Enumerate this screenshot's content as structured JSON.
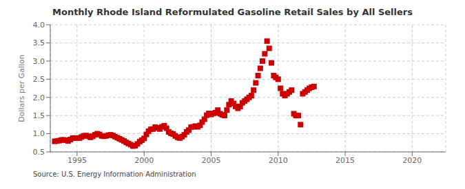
{
  "chart_data": {
    "type": "scatter",
    "title": "Monthly Rhode Island Reformulated Gasoline Retail Sales by All Sellers",
    "ylabel": "Dollars per Gallon",
    "annotation": "Source: U.S. Energy Information Administration",
    "xlim": [
      1993.0,
      2022.5
    ],
    "ylim": [
      0.5,
      4.0
    ],
    "xticks": [
      1995,
      2000,
      2005,
      2010,
      2015,
      2020
    ],
    "yticks": [
      0.5,
      {
        "value": 1.0,
        "label": "1.0"
      },
      1.5,
      {
        "value": 2.0,
        "label": "2.0"
      },
      2.5,
      {
        "value": 3.0,
        "label": "3.0"
      },
      3.5,
      {
        "value": 4.0,
        "label": "4.0"
      }
    ],
    "grid": true,
    "color": "#cc0000",
    "marker": "square",
    "x": [
      1993.33,
      1993.5,
      1993.67,
      1993.83,
      1994.0,
      1994.17,
      1994.33,
      1994.5,
      1994.67,
      1994.83,
      1995.0,
      1995.17,
      1995.33,
      1995.5,
      1995.67,
      1995.83,
      1996.0,
      1996.17,
      1996.33,
      1996.5,
      1996.67,
      1996.83,
      1997.0,
      1997.17,
      1997.33,
      1997.5,
      1997.67,
      1997.83,
      1998.0,
      1998.17,
      1998.33,
      1998.5,
      1998.67,
      1998.83,
      1999.0,
      1999.17,
      1999.33,
      1999.5,
      1999.67,
      1999.83,
      2000.0,
      2000.17,
      2000.33,
      2000.5,
      2000.67,
      2000.83,
      2001.0,
      2001.17,
      2001.33,
      2001.5,
      2001.67,
      2001.83,
      2002.0,
      2002.17,
      2002.33,
      2002.5,
      2002.67,
      2002.83,
      2003.0,
      2003.17,
      2003.33,
      2003.5,
      2003.67,
      2003.83,
      2004.0,
      2004.17,
      2004.33,
      2004.5,
      2004.67,
      2004.83,
      2005.0,
      2005.17,
      2005.33,
      2005.5,
      2005.67,
      2005.83,
      2006.0,
      2006.17,
      2006.33,
      2006.5,
      2006.67,
      2006.83,
      2007.0,
      2007.17,
      2007.33,
      2007.5,
      2007.67,
      2007.83,
      2008.0,
      2008.17,
      2008.33,
      2008.5,
      2008.67,
      2008.83,
      2009.0,
      2009.17,
      2009.33,
      2009.5,
      2009.67,
      2009.83,
      2010.0,
      2010.17,
      2010.33,
      2010.5,
      2010.67,
      2010.83,
      2011.0,
      2011.17,
      2011.33,
      2011.5,
      2011.67,
      2011.83,
      2012.0,
      2012.17,
      2012.33,
      2012.5,
      2012.67
    ],
    "values": [
      0.79,
      0.8,
      0.81,
      0.83,
      0.83,
      0.82,
      0.8,
      0.84,
      0.88,
      0.88,
      0.88,
      0.88,
      0.91,
      0.94,
      0.95,
      0.93,
      0.9,
      0.93,
      0.97,
      1.0,
      0.98,
      0.94,
      0.93,
      0.94,
      0.96,
      0.97,
      0.95,
      0.92,
      0.89,
      0.86,
      0.83,
      0.8,
      0.76,
      0.73,
      0.7,
      0.66,
      0.67,
      0.72,
      0.78,
      0.82,
      0.87,
      0.98,
      1.07,
      1.12,
      1.13,
      1.18,
      1.16,
      1.13,
      1.19,
      1.22,
      1.15,
      1.05,
      1.01,
      0.99,
      0.94,
      0.9,
      0.88,
      0.92,
      0.97,
      1.05,
      1.1,
      1.18,
      1.19,
      1.21,
      1.19,
      1.23,
      1.32,
      1.4,
      1.51,
      1.56,
      1.53,
      1.56,
      1.58,
      1.65,
      1.55,
      1.52,
      1.5,
      1.65,
      1.8,
      1.9,
      1.83,
      1.75,
      1.7,
      1.75,
      1.85,
      1.9,
      1.95,
      2.0,
      2.05,
      2.2,
      2.4,
      2.6,
      2.8,
      3.0,
      3.2,
      3.55,
      3.35,
      2.95,
      2.6,
      2.55,
      2.5,
      2.25,
      2.1,
      2.05,
      2.1,
      2.15,
      2.2,
      1.55,
      1.5,
      1.5,
      1.25,
      2.1,
      2.15,
      2.2,
      2.25,
      2.28,
      2.3
    ]
  }
}
